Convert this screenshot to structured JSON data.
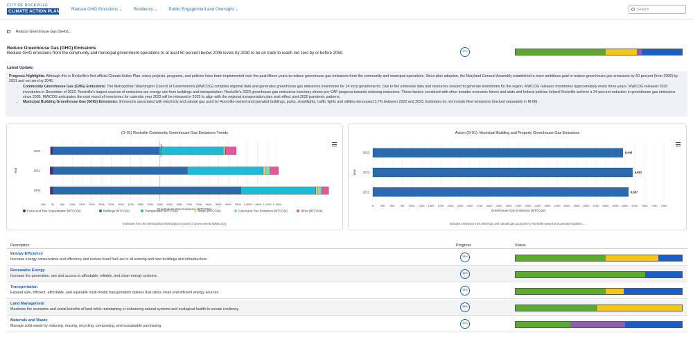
{
  "header": {
    "logo_line1": "CITY OF ROCKVILLE",
    "logo_line2": "CLIMATE ACTION PLAN",
    "nav": [
      "Reduce GHG Emissions",
      "Resiliency",
      "Public Engagement and Oversight"
    ],
    "search_placeholder": "Search"
  },
  "breadcrumb": "Reduce Greenhouse Gas (GHG)...",
  "page": {
    "title": "Reduce Greenhouse Gas (GHG) Emissions",
    "subtitle": "Reduce GHG emissions from the community and municipal government operations to at least 50 percent below 2005 levels by 2030 to be on track to reach net zero by or before 2050.",
    "progress": "47%",
    "status_segments": [
      {
        "color": "#5aaa2e",
        "value": 0.54
      },
      {
        "color": "#f5c518",
        "value": 0.19
      },
      {
        "color": "#8e5fb0",
        "value": 0.03
      },
      {
        "color": "#1a5fc8",
        "value": 0.24
      }
    ]
  },
  "latest_update": {
    "heading": "Latest Update:",
    "intro_label": "Progress Highlights:",
    "intro_text": "Although this is Rockville's first official Climate Action Plan, many projects, programs, and policies have been implemented over the past fifteen years to reduce greenhouse gas emissions from the community and municipal operations. Since plan adoption, the Maryland General Assembly established a more ambitious goal to reduce greenhouse gas emissions by 60 percent (from 2006) by 2031 and net zero by 2045.",
    "bullets": [
      {
        "label": "Community Greenhouse Gas (GHG) Emissions:",
        "text": "The Metropolitan Washington Council of Governments (MWCOG) compiles regional data and generates greenhouse gas emissions inventories for 24 local governments. Due to the extensive data and resources needed to generate inventories for the region, MWCOG releases inventories approximately every three years. MWCOG released 2020 inventories in December of 2022. Rockville's largest sources of emissions are energy use from buildings and transportation. Rockville's 2020 greenhouse gas emissions inventory shows pre-CAP progress towards reducing emissions. These factors combined with other broader economic forces and state and federal policies helped Rockville achieve a 34 percent reduction in greenhouse gas emissions since 2005. MWCOG anticipates the next round of inventories for calendar year 2023 will be released in 2025 to align with the regional transportation plan and reflect post-2020 pandemic patterns."
      },
      {
        "label": "Municipal Building Greenhouse Gas (GHG) Emissions:",
        "text": "Emissions associated with electricity and natural gas used by Rockville-owned and operated buildings, parks, streetlights, traffic lights and utilities decreased 3.7% between 2022 and 2023. Estimates do not include fleet emissions (tracked separately in M-06)."
      }
    ]
  },
  "chart_data": [
    {
      "type": "bar",
      "title": "(G-01) Rockville Community Greenhouse Gas Emissions Trends",
      "xlabel": "Greenhouse Gas Emissions (MTCO2e)",
      "ylabel": "Year",
      "categories": [
        "2020",
        "2012",
        "2005"
      ],
      "xlim": [
        -50000,
        1400000
      ],
      "ticks": [
        "0k",
        "50k",
        "100k",
        "150k",
        "200k",
        "250k",
        "300k",
        "350k",
        "400k",
        "450k",
        "500k",
        "550k",
        "600k",
        "650k",
        "700k",
        "750k",
        "800k",
        "850k",
        "900k",
        "950k",
        "1,000k",
        "1,050k",
        "1,100k",
        "1,150k"
      ],
      "reference_label": "2030 Target",
      "reference_value": 550000,
      "series": [
        {
          "name": "Forest and Tree Sequestration (MTCO2e)",
          "color": "#5b2a86",
          "values": [
            -12000,
            -14000,
            -13000
          ]
        },
        {
          "name": "Buildings (MTCO2e)",
          "color": "#2a6bb0",
          "values": [
            545000,
            690000,
            965000
          ]
        },
        {
          "name": "Transportation (MTCO2e)",
          "color": "#1ebbd7",
          "values": [
            330000,
            390000,
            385000
          ]
        },
        {
          "name": "Waste (MTCO2e)",
          "color": "#f5d76e",
          "values": [
            7000,
            10000,
            10000
          ]
        },
        {
          "name": "Forest and Tree Emissions (MTCO2e)",
          "color": "#7ed9b8",
          "values": [
            4000,
            25000,
            20000
          ]
        },
        {
          "name": "Other (MTCO2e)",
          "color": "#e8559a",
          "values": [
            55000,
            43000,
            35000
          ]
        }
      ],
      "footnote": "Estimates from the Metropolitan Washington Council of Governments (MWCOG)."
    },
    {
      "type": "bar",
      "title": "Action (G-01): Municipal Building and Property Greenhouse Gas Emissions",
      "xlabel": "Greenhouse Gas Emissions (MTCO2e)",
      "ylabel": "Year",
      "categories": [
        "2023",
        "2022",
        "2021"
      ],
      "xlim": [
        0,
        7500
      ],
      "ticks": [
        "0",
        "250",
        "500",
        "750",
        "1000",
        "1250",
        "1500",
        "1750",
        "2000",
        "2250",
        "2500",
        "2750",
        "3000",
        "3250",
        "3500",
        "3750",
        "4000",
        "4250",
        "4500",
        "4750",
        "5000",
        "5250",
        "5500",
        "5750",
        "6000",
        "6250",
        "6500",
        "6750",
        "7000",
        "7250",
        "7500"
      ],
      "values": [
        6443,
        6691,
        6587
      ],
      "data_labels": [
        "6,443",
        "6,691",
        "6,587"
      ],
      "color": "#2a6bb0",
      "footnote": "Includes emissions from electricity and natural gas accounts for Rockville-owned and operated facilities,..."
    }
  ],
  "table": {
    "headers": [
      "Description",
      "Progress",
      "Status"
    ],
    "rows": [
      {
        "name": "Energy Efficiency",
        "desc": "Increase energy conservation and efficiency and reduce fossil fuel use in all existing and new buildings and infrastructure.",
        "progress": "53%",
        "segments": [
          {
            "color": "#5aaa2e",
            "value": 0.54
          },
          {
            "color": "#f5c518",
            "value": 0.32
          },
          {
            "color": "#1a5fc8",
            "value": 0.14
          }
        ]
      },
      {
        "name": "Renewable Energy",
        "desc": "Increase the generation, use and access to affordable, reliable, and clean energy systems.",
        "progress": "46%",
        "segments": [
          {
            "color": "#5aaa2e",
            "value": 0.78
          },
          {
            "color": "#1a5fc8",
            "value": 0.22
          }
        ]
      },
      {
        "name": "Transportation",
        "desc": "Expand safe, efficient, affordable, and equitable multi-modal transportation options that utilize clean and efficient energy sources.",
        "progress": "53%",
        "segments": [
          {
            "color": "#5aaa2e",
            "value": 0.54
          },
          {
            "color": "#f5c518",
            "value": 0.11
          },
          {
            "color": "#1a5fc8",
            "value": 0.35
          }
        ]
      },
      {
        "name": "Land Management",
        "desc": "Maximize the economic and social benefits of land while maintaining or enhancing natural systems and ecological health to ensure resiliency.",
        "progress": "36%",
        "segments": [
          {
            "color": "#5aaa2e",
            "value": 0.49
          },
          {
            "color": "#f5c518",
            "value": 0.51
          }
        ]
      },
      {
        "name": "Materials and Waste",
        "desc": "Manage solid waste by reducing, reusing, recycling, composting, and sustainable purchasing.",
        "progress": "40%",
        "segments": [
          {
            "color": "#5aaa2e",
            "value": 0.33
          },
          {
            "color": "#8e5fb0",
            "value": 0.33
          },
          {
            "color": "#1a5fc8",
            "value": 0.34
          }
        ]
      }
    ]
  }
}
